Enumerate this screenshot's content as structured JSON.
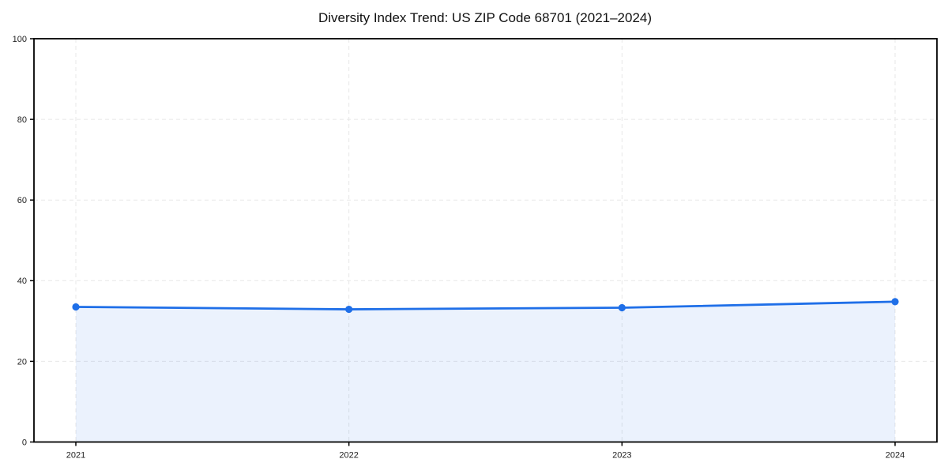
{
  "page": {
    "background": "#ffffff"
  },
  "chart_data": {
    "type": "area",
    "title": "Diversity Index Trend: US ZIP Code 68701 (2021–2024)",
    "categories": [
      "2021",
      "2022",
      "2023",
      "2024"
    ],
    "values": [
      33.5,
      32.9,
      33.3,
      34.8
    ],
    "xlabel": "",
    "ylabel": "",
    "ylim": [
      0,
      100
    ],
    "yticks": [
      0,
      20,
      40,
      60,
      80,
      100
    ],
    "grid": true,
    "grid_style": "dashed",
    "legend": false,
    "marker": "circle",
    "colors": {
      "line": "#1f6fe8",
      "marker": "#1f6fe8",
      "fill": "#1f6fe8",
      "fill_opacity": 0.09,
      "grid": "#e7e7e7",
      "spine": "#000000",
      "tick_label": "#222222",
      "title": "#111111"
    }
  }
}
